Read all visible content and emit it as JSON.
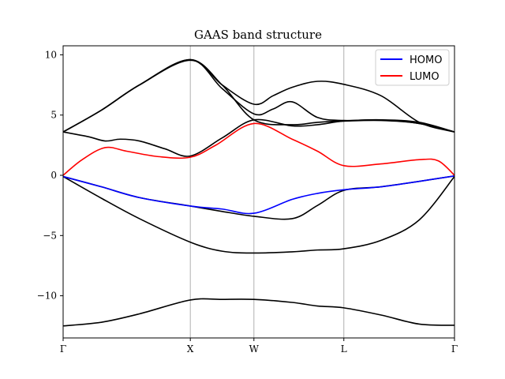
{
  "chart_data": {
    "type": "line",
    "title": "GAAS band structure",
    "xlabel": "",
    "ylabel": "",
    "xlim": [
      0,
      3.077
    ],
    "ylim": [
      -13.5,
      10.75
    ],
    "grid": "vertical lines at high-symmetry points",
    "legend_position": "top-right",
    "x_ticks": [
      {
        "label": "Γ",
        "value": 0
      },
      {
        "label": "X",
        "value": 1
      },
      {
        "label": "W",
        "value": 1.5
      },
      {
        "label": "L",
        "value": 2.207
      },
      {
        "label": "Γ",
        "value": 3.077
      }
    ],
    "y_ticks": [
      {
        "label": "10",
        "value": 10
      },
      {
        "label": "5",
        "value": 5
      },
      {
        "label": "0",
        "value": 0
      },
      {
        "label": "−5",
        "value": -5
      },
      {
        "label": "−10",
        "value": -10
      }
    ],
    "legend": [
      {
        "label": "HOMO",
        "color": "#0000ff"
      },
      {
        "label": "LUMO",
        "color": "#ff0000"
      }
    ],
    "series": [
      {
        "name": "HOMO",
        "color": "#0000ff",
        "x": [
          0,
          0.3,
          0.6,
          1.0,
          1.25,
          1.5,
          1.8,
          2.0,
          2.207,
          2.5,
          2.8,
          3.077
        ],
        "y": [
          -0.1,
          -0.95,
          -1.85,
          -2.55,
          -2.8,
          -3.15,
          -2.0,
          -1.5,
          -1.2,
          -0.95,
          -0.5,
          -0.05
        ]
      },
      {
        "name": "LUMO",
        "color": "#ff0000",
        "x": [
          0,
          0.15,
          0.33,
          0.5,
          0.75,
          1.0,
          1.2,
          1.5,
          1.8,
          2.0,
          2.207,
          2.5,
          2.8,
          2.95,
          3.077
        ],
        "y": [
          0.0,
          1.3,
          2.3,
          2.0,
          1.55,
          1.5,
          2.5,
          4.3,
          3.0,
          2.0,
          0.8,
          0.95,
          1.3,
          1.2,
          0.0
        ]
      },
      {
        "x": [
          0,
          0.3,
          0.6,
          1.0,
          1.25,
          1.5,
          1.8,
          2.0,
          2.207,
          2.5,
          2.8,
          3.077
        ],
        "y": [
          -0.1,
          -1.9,
          -3.6,
          -5.55,
          -6.3,
          -6.45,
          -6.35,
          -6.2,
          -6.1,
          -5.4,
          -3.7,
          -0.1
        ]
      },
      {
        "x": [
          0,
          0.3,
          0.6,
          1.0,
          1.25,
          1.5,
          1.8,
          2.0,
          2.207,
          2.5,
          2.8,
          3.077
        ],
        "y": [
          -12.5,
          -12.2,
          -11.5,
          -10.35,
          -10.3,
          -10.3,
          -10.55,
          -10.85,
          -11.0,
          -11.6,
          -12.35,
          -12.45
        ]
      },
      {
        "x": [
          0,
          0.3,
          0.6,
          1.0,
          1.25,
          1.5,
          1.8,
          2.0,
          2.207,
          2.5,
          2.8,
          3.077
        ],
        "y": [
          -0.1,
          -0.95,
          -1.85,
          -2.55,
          -3.0,
          -3.4,
          -3.6,
          -2.5,
          -1.25,
          -0.95,
          -0.5,
          -0.05
        ]
      },
      {
        "x": [
          0,
          0.2,
          0.33,
          0.45,
          0.6,
          0.8,
          1.0,
          1.25,
          1.5,
          1.8,
          2.0,
          2.207,
          2.5,
          2.8,
          3.077
        ],
        "y": [
          3.6,
          3.2,
          2.85,
          3.0,
          2.85,
          2.2,
          1.6,
          3.1,
          4.6,
          4.1,
          4.2,
          4.5,
          4.6,
          4.4,
          3.6
        ]
      },
      {
        "x": [
          0,
          0.3,
          0.6,
          1.0,
          1.25,
          1.5,
          1.8,
          2.0,
          2.207,
          2.5,
          2.8,
          3.077
        ],
        "y": [
          3.6,
          5.4,
          7.5,
          9.55,
          7.5,
          4.6,
          4.2,
          4.4,
          4.5,
          4.55,
          4.3,
          3.6
        ]
      },
      {
        "x": [
          0,
          0.3,
          0.6,
          1.0,
          1.25,
          1.5,
          1.65,
          1.8,
          2.0,
          2.207,
          2.5,
          2.8,
          3.077
        ],
        "y": [
          3.6,
          5.4,
          7.5,
          9.6,
          7.2,
          5.1,
          5.5,
          6.1,
          4.8,
          4.55,
          4.6,
          4.3,
          3.6
        ]
      },
      {
        "x": [
          0,
          0.3,
          0.6,
          1.0,
          1.25,
          1.5,
          1.65,
          1.8,
          2.0,
          2.207,
          2.5,
          2.8,
          3.077
        ],
        "y": [
          3.6,
          5.4,
          7.5,
          9.6,
          7.5,
          5.9,
          6.6,
          7.3,
          7.8,
          7.55,
          6.6,
          4.4,
          3.6
        ]
      }
    ]
  }
}
